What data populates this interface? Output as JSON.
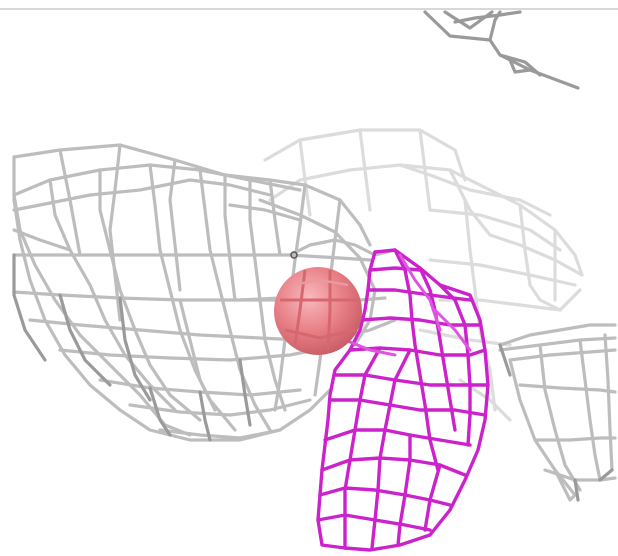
{
  "scene": {
    "colors": {
      "background": "#ffffff",
      "grey_mesh": "#bdbdbd",
      "magenta_mesh": "#cc22cc",
      "atom_sphere": "#e87f86"
    },
    "objects": [
      {
        "name": "grey-density-mesh",
        "color": "#bdbdbd"
      },
      {
        "name": "magenta-density-mesh",
        "color": "#cc22cc"
      },
      {
        "name": "atom-sphere",
        "color": "#e87f86"
      }
    ]
  }
}
